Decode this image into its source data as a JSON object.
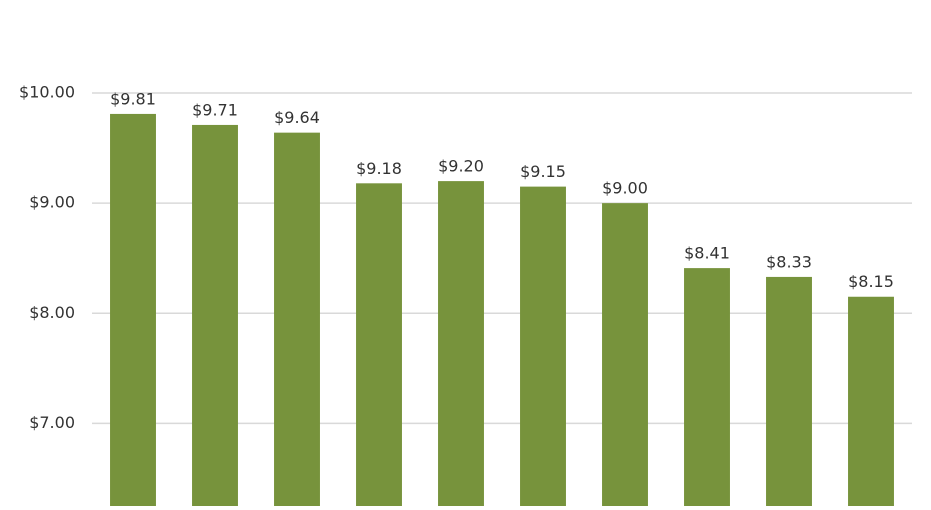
{
  "chart_data": {
    "type": "bar",
    "categories": [
      null,
      null,
      null,
      null,
      null,
      null,
      null,
      null,
      null,
      null
    ],
    "values": [
      9.81,
      9.71,
      9.64,
      9.18,
      9.2,
      9.15,
      9.0,
      8.41,
      8.33,
      8.15
    ],
    "value_labels": [
      "$9.81",
      "$9.71",
      "$9.64",
      "$9.18",
      "$9.20",
      "$9.15",
      "$9.00",
      "$8.41",
      "$8.33",
      "$8.15"
    ],
    "color": "#77933c",
    "ylim": [
      6.25,
      10
    ],
    "yticks": [
      {
        "value": 7,
        "label": "$7.00"
      },
      {
        "value": 8,
        "label": "$8.00"
      },
      {
        "value": 9,
        "label": "$9.00"
      },
      {
        "value": 10,
        "label": "$10.00"
      }
    ],
    "grid": true
  }
}
